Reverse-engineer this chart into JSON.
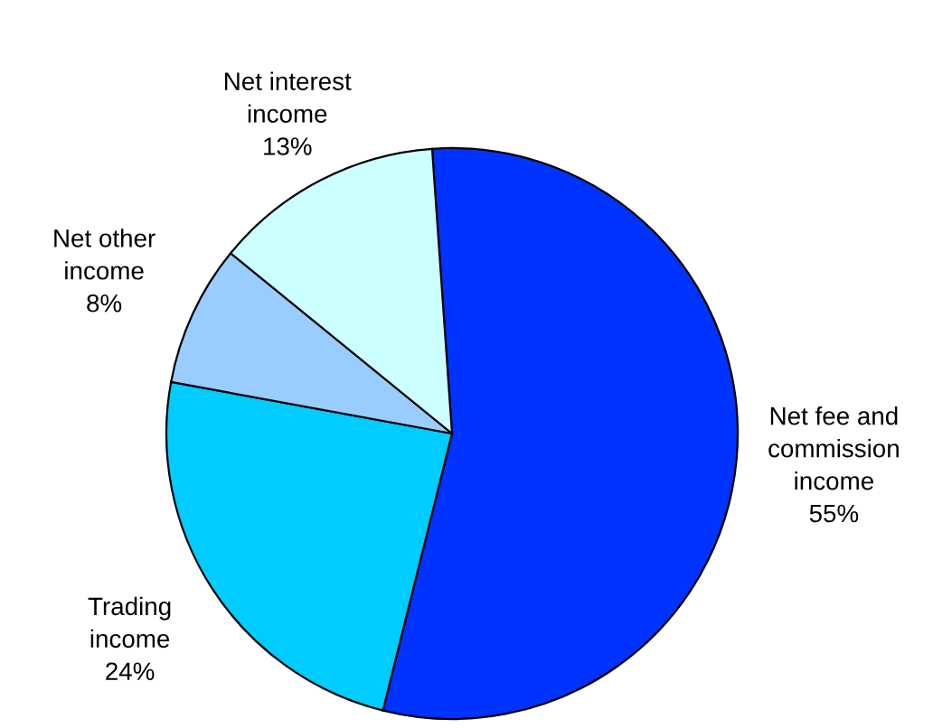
{
  "chart_data": {
    "type": "pie",
    "categories": [
      "Net fee and\ncommission\nincome",
      "Trading\nincome",
      "Net other\nincome",
      "Net interest\nincome"
    ],
    "values": [
      55,
      24,
      8,
      13
    ],
    "colors": [
      "#0033ff",
      "#00ccff",
      "#99ccff",
      "#ccffff"
    ],
    "value_labels": [
      "55%",
      "24%",
      "8%",
      "13%"
    ]
  }
}
